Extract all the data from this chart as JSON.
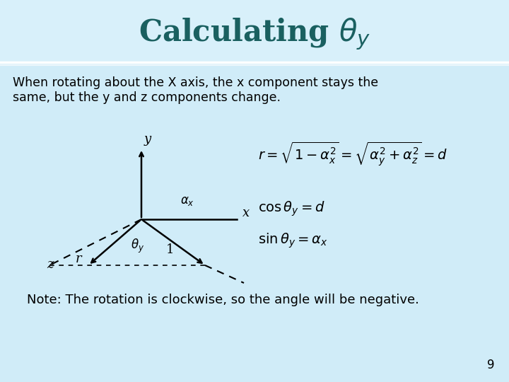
{
  "bg_color": "#d0ecf8",
  "title_color": "#1a6060",
  "title_text": "Calculating $\\theta_y$",
  "title_fontsize": 30,
  "body_text_1": "When rotating about the X axis, the x component stays the\nsame, but the y and z components change.",
  "formula": "$r = \\sqrt{1 - \\alpha_x^2} = \\sqrt{\\alpha_y^2 + \\alpha_z^2} = d$",
  "eq1": "$\\cos\\theta_y = d$",
  "eq2": "$\\sin\\theta_y = \\alpha_x$",
  "note": "Note: The rotation is clockwise, so the angle will be negative.",
  "page_num": "9",
  "text_color": "#000000"
}
